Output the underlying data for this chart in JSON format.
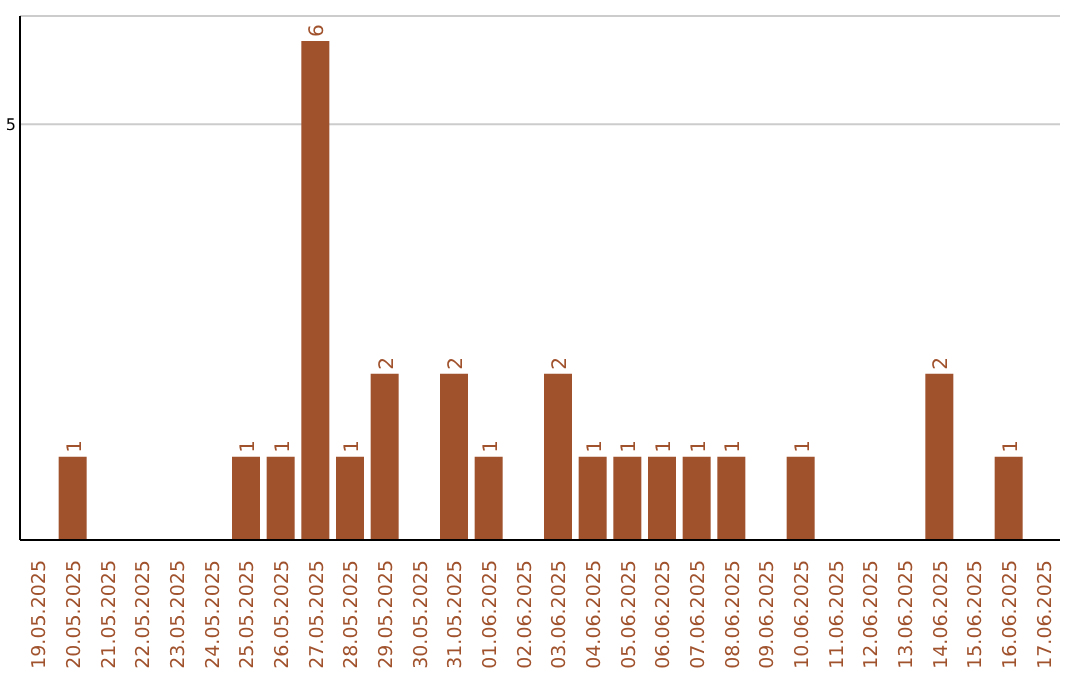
{
  "chart_data": {
    "type": "bar",
    "categories": [
      "19.05.2025",
      "20.05.2025",
      "21.05.2025",
      "22.05.2025",
      "23.05.2025",
      "24.05.2025",
      "25.05.2025",
      "26.05.2025",
      "27.05.2025",
      "28.05.2025",
      "29.05.2025",
      "30.05.2025",
      "31.05.2025",
      "01.06.2025",
      "02.06.2025",
      "03.06.2025",
      "04.06.2025",
      "05.06.2025",
      "06.06.2025",
      "07.06.2025",
      "08.06.2025",
      "09.06.2025",
      "10.06.2025",
      "11.06.2025",
      "12.06.2025",
      "13.06.2025",
      "14.06.2025",
      "15.06.2025",
      "16.06.2025",
      "17.06.2025"
    ],
    "values": [
      0,
      1,
      0,
      0,
      0,
      0,
      1,
      1,
      6,
      1,
      2,
      0,
      2,
      1,
      0,
      2,
      1,
      1,
      1,
      1,
      1,
      0,
      1,
      0,
      0,
      0,
      2,
      0,
      1,
      0
    ],
    "value_labels": [
      null,
      "1",
      null,
      null,
      null,
      null,
      "1",
      "1",
      "6",
      "1",
      "2",
      null,
      "2",
      "1",
      null,
      "2",
      "1",
      "1",
      "1",
      "1",
      "1",
      null,
      "1",
      null,
      null,
      null,
      "2",
      null,
      "1",
      null
    ],
    "color": "#a0522d",
    "ylim": [
      0,
      6.3
    ],
    "yticks": [
      5
    ],
    "grid": "y"
  }
}
